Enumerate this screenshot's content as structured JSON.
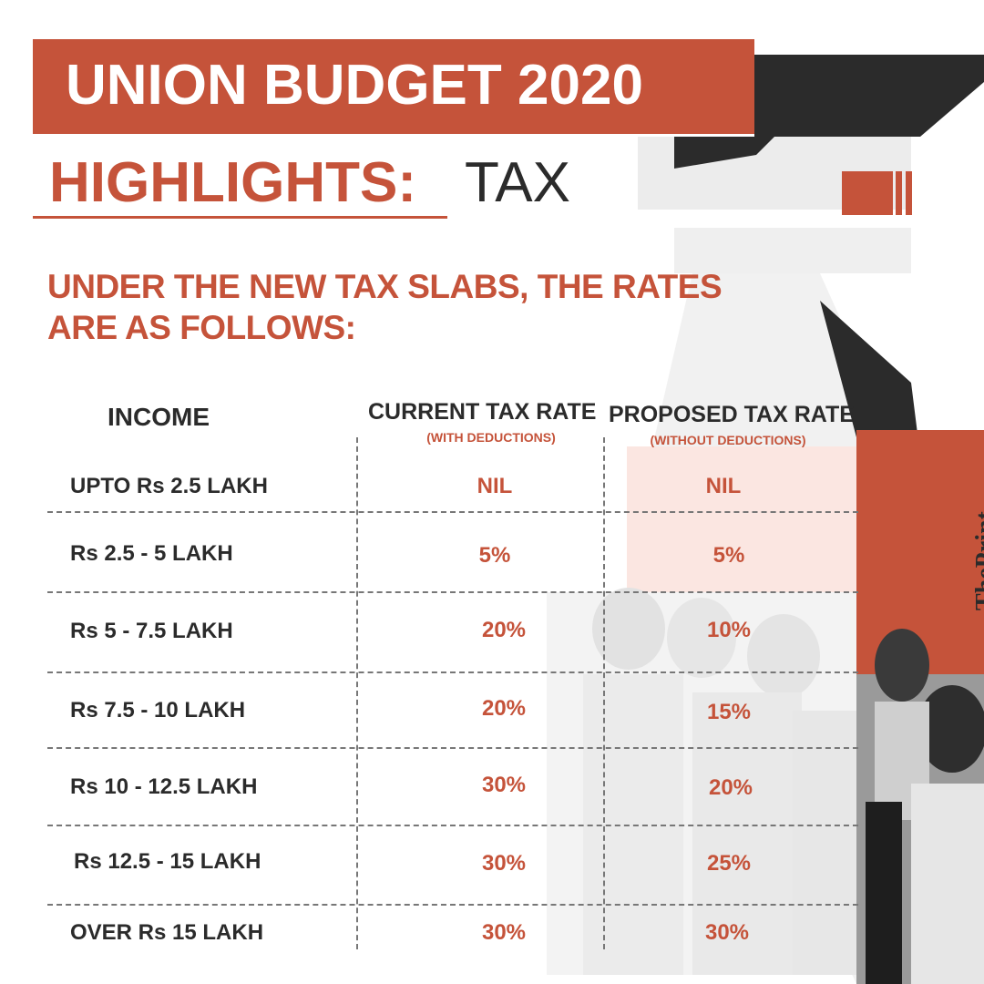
{
  "header": {
    "title": "UNION BUDGET 2020",
    "highlights": "HIGHLIGHTS:",
    "topic": "TAX"
  },
  "intro": "UNDER THE NEW TAX SLABS, THE RATES ARE AS FOLLOWS:",
  "table": {
    "headers": {
      "income": "INCOME",
      "current": "CURRENT TAX RATE",
      "current_sub": "(WITH DEDUCTIONS)",
      "proposed": "PROPOSED TAX RATE",
      "proposed_sub": "(WITHOUT DEDUCTIONS)"
    },
    "rows": [
      {
        "income": "UPTO Rs 2.5 LAKH",
        "current": "NIL",
        "proposed": "NIL"
      },
      {
        "income": "Rs 2.5 - 5 LAKH",
        "current": "5%",
        "proposed": "5%"
      },
      {
        "income": "Rs 5 - 7.5 LAKH",
        "current": "20%",
        "proposed": "10%"
      },
      {
        "income": "Rs 7.5 - 10 LAKH",
        "current": "20%",
        "proposed": "15%"
      },
      {
        "income": "Rs 10 - 12.5 LAKH",
        "current": "30%",
        "proposed": "20%"
      },
      {
        "income": "Rs 12.5 - 15 LAKH",
        "current": "30%",
        "proposed": "25%"
      },
      {
        "income": "OVER Rs 15 LAKH",
        "current": "30%",
        "proposed": "30%"
      }
    ]
  },
  "brand": "ThePrint",
  "colors": {
    "accent": "#c5533a",
    "dark": "#2b2b2b",
    "highlight_fill": "#fbe6e1"
  },
  "icons": {
    "rupee": "rupee-symbol-icon"
  }
}
